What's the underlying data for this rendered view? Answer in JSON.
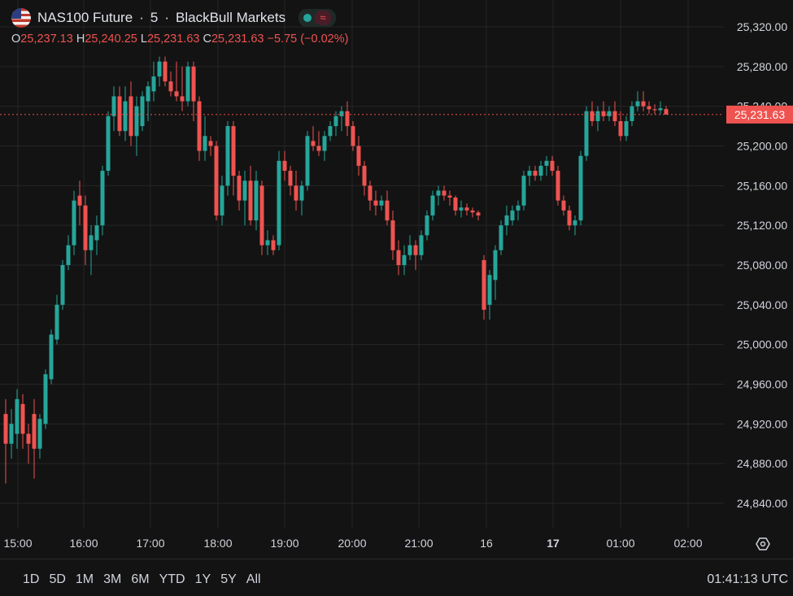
{
  "header": {
    "symbol": "NAS100 Future",
    "interval": "5",
    "separator": "·",
    "broker": "BlackBull Markets",
    "flag_icon": "us-flag-icon",
    "status_icon": "market-open-dot-icon",
    "wave_icon": "≈"
  },
  "ohlc": {
    "o_label": "O",
    "o": "25,237.13",
    "h_label": "H",
    "h": "25,240.25",
    "l_label": "L",
    "l": "25,231.63",
    "c_label": "C",
    "c": "25,231.63",
    "change": "−5.75 (−0.02%)"
  },
  "colors": {
    "up": "#26a69a",
    "down": "#ef5350",
    "background": "#131313",
    "grid": "#262626",
    "price_line": "#ef5350"
  },
  "time_ranges": [
    "1D",
    "5D",
    "1M",
    "3M",
    "6M",
    "YTD",
    "1Y",
    "5Y",
    "All"
  ],
  "clock": "01:41:13 UTC",
  "chart_data": {
    "type": "candlestick",
    "interval_minutes": 5,
    "ylim": [
      24810,
      25332
    ],
    "y_ticks": [
      24840,
      24880,
      24920,
      24960,
      25000,
      25040,
      25080,
      25120,
      25160,
      25200,
      25240,
      25280,
      25320
    ],
    "y_tick_labels": [
      "24,840.00",
      "24,880.00",
      "24,920.00",
      "24,960.00",
      "25,000.00",
      "25,040.00",
      "25,080.00",
      "25,120.00",
      "25,160.00",
      "25,200.00",
      "25,240.00",
      "25,280.00",
      "25,320.00"
    ],
    "x_tick_labels": [
      "15:00",
      "16:00",
      "17:00",
      "18:00",
      "19:00",
      "20:00",
      "21:00",
      "16",
      "17",
      "01:00",
      "02:00"
    ],
    "x_tick_bold": [
      false,
      false,
      false,
      false,
      false,
      false,
      false,
      false,
      true,
      false,
      false
    ],
    "last_price": 25231.63,
    "last_price_label": "25,231.63",
    "candles": [
      {
        "o": 24930,
        "h": 24945,
        "l": 24860,
        "c": 24900
      },
      {
        "o": 24900,
        "h": 24935,
        "l": 24885,
        "c": 24920
      },
      {
        "o": 24910,
        "h": 24955,
        "l": 24895,
        "c": 24945
      },
      {
        "o": 24940,
        "h": 24950,
        "l": 24895,
        "c": 24910
      },
      {
        "o": 24910,
        "h": 24920,
        "l": 24880,
        "c": 24900
      },
      {
        "o": 24930,
        "h": 24945,
        "l": 24865,
        "c": 24895
      },
      {
        "o": 24895,
        "h": 24930,
        "l": 24885,
        "c": 24925
      },
      {
        "o": 24920,
        "h": 24975,
        "l": 24915,
        "c": 24970
      },
      {
        "o": 24965,
        "h": 25015,
        "l": 24960,
        "c": 25010
      },
      {
        "o": 25005,
        "h": 25050,
        "l": 25000,
        "c": 25040
      },
      {
        "o": 25040,
        "h": 25085,
        "l": 25035,
        "c": 25080
      },
      {
        "o": 25080,
        "h": 25110,
        "l": 25075,
        "c": 25100
      },
      {
        "o": 25100,
        "h": 25155,
        "l": 25090,
        "c": 25145
      },
      {
        "o": 25150,
        "h": 25165,
        "l": 25120,
        "c": 25140
      },
      {
        "o": 25140,
        "h": 25150,
        "l": 25080,
        "c": 25095
      },
      {
        "o": 25095,
        "h": 25120,
        "l": 25070,
        "c": 25110
      },
      {
        "o": 25105,
        "h": 25130,
        "l": 25090,
        "c": 25120
      },
      {
        "o": 25120,
        "h": 25180,
        "l": 25110,
        "c": 25175
      },
      {
        "o": 25175,
        "h": 25235,
        "l": 25170,
        "c": 25230
      },
      {
        "o": 25230,
        "h": 25260,
        "l": 25215,
        "c": 25250
      },
      {
        "o": 25250,
        "h": 25260,
        "l": 25210,
        "c": 25215
      },
      {
        "o": 25215,
        "h": 25260,
        "l": 25205,
        "c": 25245
      },
      {
        "o": 25250,
        "h": 25265,
        "l": 25200,
        "c": 25210
      },
      {
        "o": 25210,
        "h": 25250,
        "l": 25190,
        "c": 25240
      },
      {
        "o": 25220,
        "h": 25255,
        "l": 25215,
        "c": 25250
      },
      {
        "o": 25245,
        "h": 25265,
        "l": 25225,
        "c": 25260
      },
      {
        "o": 25255,
        "h": 25285,
        "l": 25245,
        "c": 25270
      },
      {
        "o": 25270,
        "h": 25290,
        "l": 25260,
        "c": 25285
      },
      {
        "o": 25285,
        "h": 25290,
        "l": 25260,
        "c": 25265
      },
      {
        "o": 25265,
        "h": 25275,
        "l": 25250,
        "c": 25255
      },
      {
        "o": 25255,
        "h": 25285,
        "l": 25245,
        "c": 25250
      },
      {
        "o": 25250,
        "h": 25280,
        "l": 25235,
        "c": 25245
      },
      {
        "o": 25245,
        "h": 25285,
        "l": 25240,
        "c": 25280
      },
      {
        "o": 25280,
        "h": 25285,
        "l": 25225,
        "c": 25245
      },
      {
        "o": 25245,
        "h": 25250,
        "l": 25185,
        "c": 25195
      },
      {
        "o": 25195,
        "h": 25230,
        "l": 25185,
        "c": 25210
      },
      {
        "o": 25205,
        "h": 25210,
        "l": 25190,
        "c": 25200
      },
      {
        "o": 25200,
        "h": 25205,
        "l": 25125,
        "c": 25130
      },
      {
        "o": 25130,
        "h": 25170,
        "l": 25120,
        "c": 25160
      },
      {
        "o": 25160,
        "h": 25225,
        "l": 25150,
        "c": 25220
      },
      {
        "o": 25220,
        "h": 25225,
        "l": 25150,
        "c": 25170
      },
      {
        "o": 25170,
        "h": 25175,
        "l": 25135,
        "c": 25145
      },
      {
        "o": 25145,
        "h": 25175,
        "l": 25120,
        "c": 25165
      },
      {
        "o": 25165,
        "h": 25180,
        "l": 25120,
        "c": 25125
      },
      {
        "o": 25125,
        "h": 25175,
        "l": 25115,
        "c": 25165
      },
      {
        "o": 25160,
        "h": 25165,
        "l": 25090,
        "c": 25100
      },
      {
        "o": 25100,
        "h": 25115,
        "l": 25090,
        "c": 25105
      },
      {
        "o": 25105,
        "h": 25110,
        "l": 25090,
        "c": 25095
      },
      {
        "o": 25100,
        "h": 25195,
        "l": 25095,
        "c": 25185
      },
      {
        "o": 25185,
        "h": 25195,
        "l": 25165,
        "c": 25175
      },
      {
        "o": 25175,
        "h": 25180,
        "l": 25150,
        "c": 25160
      },
      {
        "o": 25160,
        "h": 25175,
        "l": 25135,
        "c": 25145
      },
      {
        "o": 25145,
        "h": 25165,
        "l": 25130,
        "c": 25160
      },
      {
        "o": 25160,
        "h": 25215,
        "l": 25155,
        "c": 25210
      },
      {
        "o": 25205,
        "h": 25220,
        "l": 25195,
        "c": 25200
      },
      {
        "o": 25200,
        "h": 25215,
        "l": 25190,
        "c": 25195
      },
      {
        "o": 25195,
        "h": 25215,
        "l": 25185,
        "c": 25210
      },
      {
        "o": 25210,
        "h": 25225,
        "l": 25205,
        "c": 25220
      },
      {
        "o": 25220,
        "h": 25235,
        "l": 25210,
        "c": 25230
      },
      {
        "o": 25230,
        "h": 25240,
        "l": 25215,
        "c": 25235
      },
      {
        "o": 25235,
        "h": 25245,
        "l": 25210,
        "c": 25220
      },
      {
        "o": 25220,
        "h": 25225,
        "l": 25195,
        "c": 25200
      },
      {
        "o": 25200,
        "h": 25210,
        "l": 25170,
        "c": 25180
      },
      {
        "o": 25180,
        "h": 25185,
        "l": 25150,
        "c": 25160
      },
      {
        "o": 25160,
        "h": 25165,
        "l": 25135,
        "c": 25145
      },
      {
        "o": 25145,
        "h": 25155,
        "l": 25130,
        "c": 25140
      },
      {
        "o": 25140,
        "h": 25150,
        "l": 25135,
        "c": 25145
      },
      {
        "o": 25145,
        "h": 25155,
        "l": 25120,
        "c": 25125
      },
      {
        "o": 25125,
        "h": 25135,
        "l": 25085,
        "c": 25095
      },
      {
        "o": 25095,
        "h": 25105,
        "l": 25070,
        "c": 25080
      },
      {
        "o": 25080,
        "h": 25100,
        "l": 25070,
        "c": 25090
      },
      {
        "o": 25090,
        "h": 25110,
        "l": 25085,
        "c": 25100
      },
      {
        "o": 25100,
        "h": 25105,
        "l": 25075,
        "c": 25090
      },
      {
        "o": 25090,
        "h": 25115,
        "l": 25085,
        "c": 25110
      },
      {
        "o": 25110,
        "h": 25135,
        "l": 25105,
        "c": 25130
      },
      {
        "o": 25130,
        "h": 25155,
        "l": 25125,
        "c": 25150
      },
      {
        "o": 25150,
        "h": 25160,
        "l": 25140,
        "c": 25155
      },
      {
        "o": 25155,
        "h": 25160,
        "l": 25145,
        "c": 25150
      },
      {
        "o": 25150,
        "h": 25155,
        "l": 25140,
        "c": 25148
      },
      {
        "o": 25148,
        "h": 25150,
        "l": 25130,
        "c": 25135
      },
      {
        "o": 25135,
        "h": 25145,
        "l": 25128,
        "c": 25138
      },
      {
        "o": 25138,
        "h": 25142,
        "l": 25130,
        "c": 25135
      },
      {
        "o": 25135,
        "h": 25138,
        "l": 25128,
        "c": 25133
      },
      {
        "o": 25133,
        "h": 25135,
        "l": 25125,
        "c": 25130
      },
      {
        "o": 25085,
        "h": 25090,
        "l": 25025,
        "c": 25035
      },
      {
        "o": 25040,
        "h": 25075,
        "l": 25025,
        "c": 25070
      },
      {
        "o": 25065,
        "h": 25100,
        "l": 25045,
        "c": 25095
      },
      {
        "o": 25095,
        "h": 25125,
        "l": 25090,
        "c": 25120
      },
      {
        "o": 25120,
        "h": 25140,
        "l": 25110,
        "c": 25130
      },
      {
        "o": 25125,
        "h": 25140,
        "l": 25120,
        "c": 25135
      },
      {
        "o": 25135,
        "h": 25145,
        "l": 25125,
        "c": 25140
      },
      {
        "o": 25140,
        "h": 25175,
        "l": 25135,
        "c": 25170
      },
      {
        "o": 25170,
        "h": 25180,
        "l": 25160,
        "c": 25175
      },
      {
        "o": 25175,
        "h": 25180,
        "l": 25165,
        "c": 25170
      },
      {
        "o": 25170,
        "h": 25185,
        "l": 25165,
        "c": 25180
      },
      {
        "o": 25180,
        "h": 25190,
        "l": 25170,
        "c": 25185
      },
      {
        "o": 25185,
        "h": 25190,
        "l": 25170,
        "c": 25175
      },
      {
        "o": 25175,
        "h": 25180,
        "l": 25140,
        "c": 25145
      },
      {
        "o": 25145,
        "h": 25150,
        "l": 25130,
        "c": 25135
      },
      {
        "o": 25135,
        "h": 25140,
        "l": 25115,
        "c": 25120
      },
      {
        "o": 25120,
        "h": 25130,
        "l": 25110,
        "c": 25125
      },
      {
        "o": 25125,
        "h": 25195,
        "l": 25120,
        "c": 25190
      },
      {
        "o": 25190,
        "h": 25240,
        "l": 25185,
        "c": 25235
      },
      {
        "o": 25235,
        "h": 25245,
        "l": 25220,
        "c": 25225
      },
      {
        "o": 25225,
        "h": 25240,
        "l": 25215,
        "c": 25235
      },
      {
        "o": 25235,
        "h": 25245,
        "l": 25225,
        "c": 25230
      },
      {
        "o": 25230,
        "h": 25240,
        "l": 25225,
        "c": 25235
      },
      {
        "o": 25235,
        "h": 25245,
        "l": 25220,
        "c": 25225
      },
      {
        "o": 25225,
        "h": 25235,
        "l": 25205,
        "c": 25210
      },
      {
        "o": 25210,
        "h": 25230,
        "l": 25205,
        "c": 25225
      },
      {
        "o": 25225,
        "h": 25245,
        "l": 25220,
        "c": 25240
      },
      {
        "o": 25240,
        "h": 25255,
        "l": 25235,
        "c": 25245
      },
      {
        "o": 25245,
        "h": 25255,
        "l": 25235,
        "c": 25240
      },
      {
        "o": 25240,
        "h": 25245,
        "l": 25232,
        "c": 25237
      },
      {
        "o": 25237,
        "h": 25242,
        "l": 25232,
        "c": 25236
      },
      {
        "o": 25236,
        "h": 25245,
        "l": 25232,
        "c": 25238
      },
      {
        "o": 25237.13,
        "h": 25240.25,
        "l": 25231.63,
        "c": 25231.63
      }
    ]
  }
}
